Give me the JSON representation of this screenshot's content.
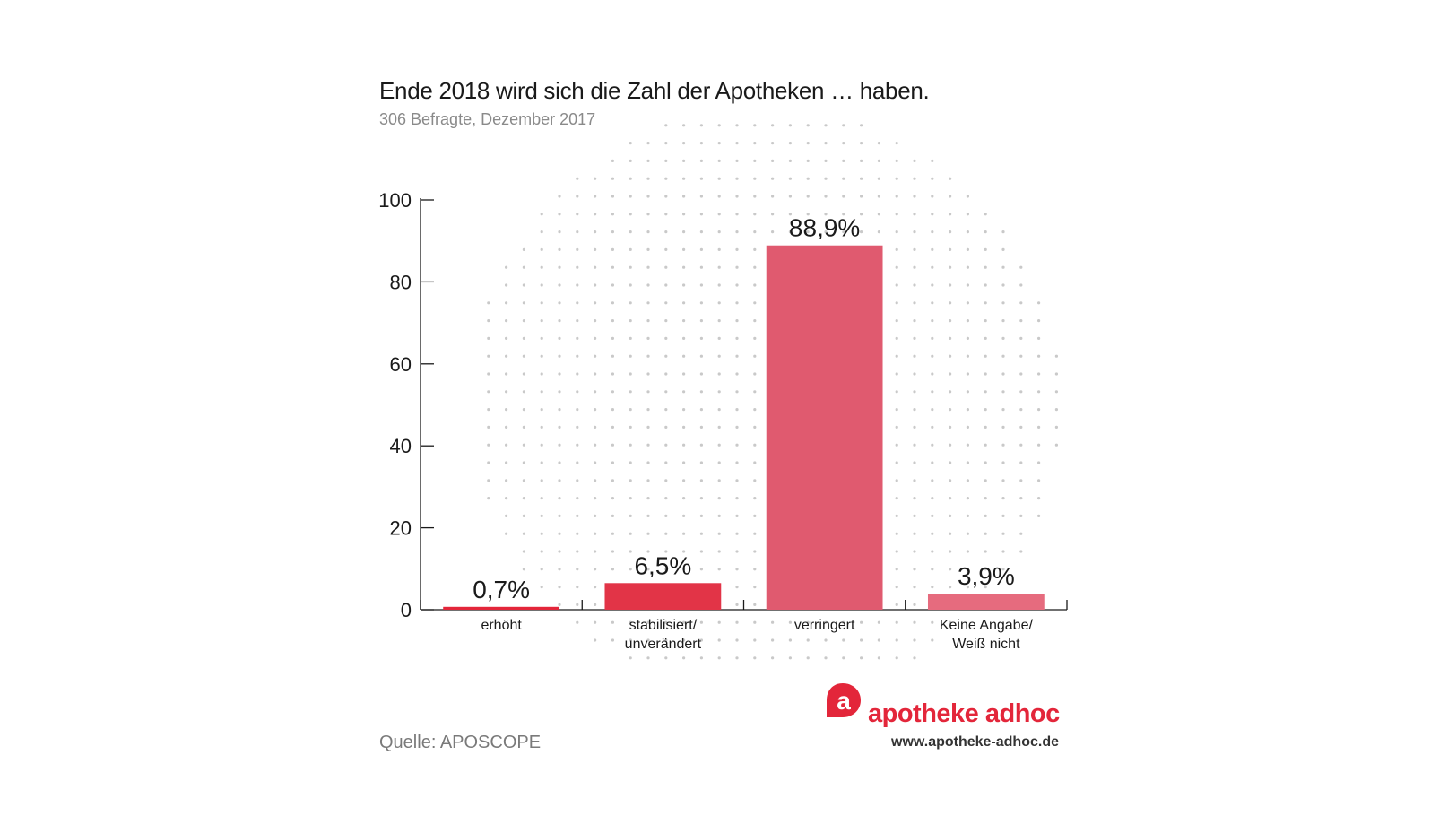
{
  "chart_data": {
    "type": "bar",
    "title": "Ende 2018 wird sich die Zahl der Apotheken … haben.",
    "subtitle": "306 Befragte, Dezember 2017",
    "categories": [
      [
        "erhöht"
      ],
      [
        "stabilisiert/",
        "unverändert"
      ],
      [
        "verringert"
      ],
      [
        "Keine Angabe/",
        "Weiß nicht"
      ]
    ],
    "values": [
      0.7,
      6.5,
      88.9,
      3.9
    ],
    "value_labels": [
      "0,7%",
      "6,5%",
      "88,9%",
      "3,9%"
    ],
    "bar_colors": [
      "#e3263a",
      "#e23447",
      "#e05a6f",
      "#e66b7e"
    ],
    "ylim": [
      0,
      100
    ],
    "yticks": [
      0,
      20,
      40,
      60,
      80,
      100
    ],
    "xlabel": "",
    "ylabel": "",
    "grid": false,
    "legend": "none"
  },
  "source": "Quelle: APOSCOPE",
  "brand": {
    "mark_letter": "a",
    "name": "apotheke adhoc",
    "url": "www.apotheke-adhoc.de",
    "color": "#e3263a"
  },
  "colors": {
    "dots": "#c9c9c9",
    "axis": "#1a1a1a"
  }
}
